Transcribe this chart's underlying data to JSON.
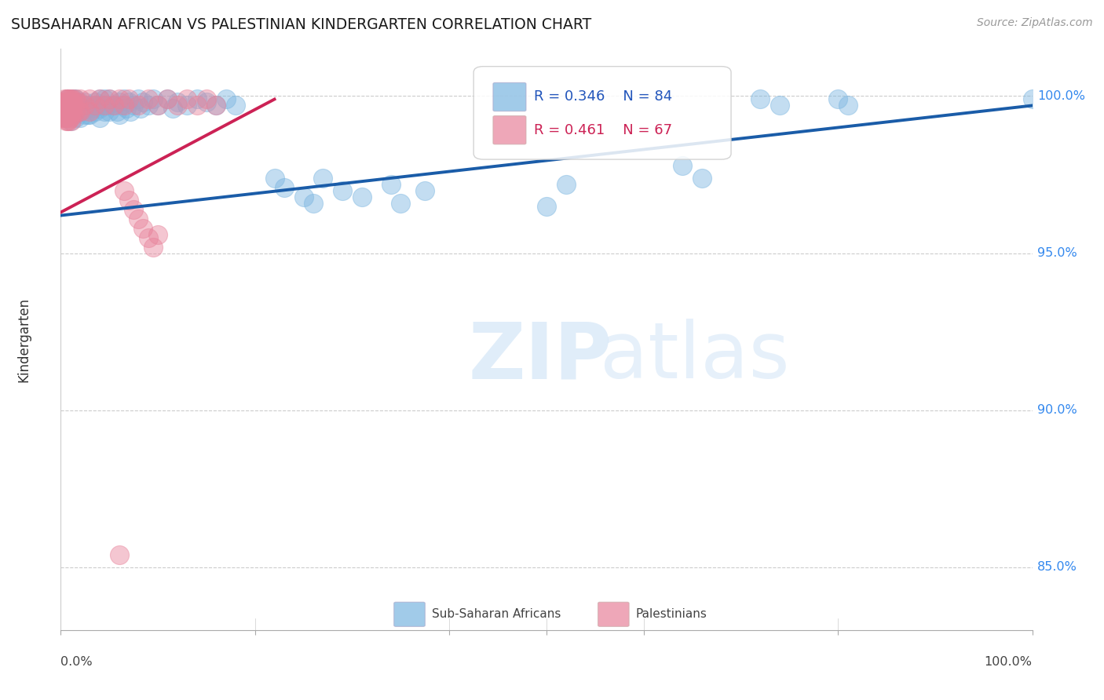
{
  "title": "SUBSAHARAN AFRICAN VS PALESTINIAN KINDERGARTEN CORRELATION CHART",
  "source": "Source: ZipAtlas.com",
  "ylabel": "Kindergarten",
  "ytick_labels": [
    "100.0%",
    "95.0%",
    "90.0%",
    "85.0%"
  ],
  "ytick_values": [
    1.0,
    0.95,
    0.9,
    0.85
  ],
  "xlim": [
    0.0,
    1.0
  ],
  "ylim": [
    0.83,
    1.015
  ],
  "legend_blue_r": "R = 0.346",
  "legend_blue_n": "N = 84",
  "legend_pink_r": "R = 0.461",
  "legend_pink_n": "N = 67",
  "legend_label_blue": "Sub-Saharan Africans",
  "legend_label_pink": "Palestinians",
  "blue_color": "#7ab5e0",
  "pink_color": "#e8829a",
  "blue_line_color": "#1a5ca8",
  "pink_line_color": "#cc2255",
  "blue_points": [
    [
      0.005,
      0.997
    ],
    [
      0.005,
      0.993
    ],
    [
      0.007,
      0.999
    ],
    [
      0.008,
      0.996
    ],
    [
      0.009,
      0.994
    ],
    [
      0.01,
      0.998
    ],
    [
      0.01,
      0.995
    ],
    [
      0.01,
      0.992
    ],
    [
      0.012,
      0.997
    ],
    [
      0.012,
      0.994
    ],
    [
      0.013,
      0.999
    ],
    [
      0.013,
      0.995
    ],
    [
      0.014,
      0.997
    ],
    [
      0.015,
      0.999
    ],
    [
      0.015,
      0.996
    ],
    [
      0.015,
      0.993
    ],
    [
      0.017,
      0.997
    ],
    [
      0.018,
      0.995
    ],
    [
      0.019,
      0.998
    ],
    [
      0.02,
      0.996
    ],
    [
      0.02,
      0.993
    ],
    [
      0.022,
      0.997
    ],
    [
      0.023,
      0.995
    ],
    [
      0.025,
      0.998
    ],
    [
      0.025,
      0.994
    ],
    [
      0.027,
      0.996
    ],
    [
      0.028,
      0.994
    ],
    [
      0.03,
      0.997
    ],
    [
      0.03,
      0.994
    ],
    [
      0.033,
      0.996
    ],
    [
      0.035,
      0.998
    ],
    [
      0.035,
      0.995
    ],
    [
      0.037,
      0.997
    ],
    [
      0.04,
      0.999
    ],
    [
      0.04,
      0.996
    ],
    [
      0.04,
      0.993
    ],
    [
      0.042,
      0.997
    ],
    [
      0.045,
      0.999
    ],
    [
      0.045,
      0.995
    ],
    [
      0.048,
      0.997
    ],
    [
      0.05,
      0.999
    ],
    [
      0.05,
      0.995
    ],
    [
      0.055,
      0.997
    ],
    [
      0.058,
      0.995
    ],
    [
      0.06,
      0.998
    ],
    [
      0.06,
      0.994
    ],
    [
      0.062,
      0.997
    ],
    [
      0.065,
      0.999
    ],
    [
      0.068,
      0.996
    ],
    [
      0.07,
      0.998
    ],
    [
      0.072,
      0.995
    ],
    [
      0.075,
      0.997
    ],
    [
      0.08,
      0.999
    ],
    [
      0.082,
      0.996
    ],
    [
      0.085,
      0.998
    ],
    [
      0.09,
      0.997
    ],
    [
      0.095,
      0.999
    ],
    [
      0.1,
      0.997
    ],
    [
      0.11,
      0.999
    ],
    [
      0.115,
      0.996
    ],
    [
      0.12,
      0.998
    ],
    [
      0.13,
      0.997
    ],
    [
      0.14,
      0.999
    ],
    [
      0.15,
      0.998
    ],
    [
      0.16,
      0.997
    ],
    [
      0.17,
      0.999
    ],
    [
      0.18,
      0.997
    ],
    [
      0.22,
      0.974
    ],
    [
      0.23,
      0.971
    ],
    [
      0.25,
      0.968
    ],
    [
      0.26,
      0.966
    ],
    [
      0.27,
      0.974
    ],
    [
      0.29,
      0.97
    ],
    [
      0.31,
      0.968
    ],
    [
      0.34,
      0.972
    ],
    [
      0.35,
      0.966
    ],
    [
      0.375,
      0.97
    ],
    [
      0.5,
      0.965
    ],
    [
      0.52,
      0.972
    ],
    [
      0.64,
      0.978
    ],
    [
      0.66,
      0.974
    ],
    [
      0.72,
      0.999
    ],
    [
      0.74,
      0.997
    ],
    [
      0.8,
      0.999
    ],
    [
      0.81,
      0.997
    ],
    [
      1.0,
      0.999
    ]
  ],
  "pink_points": [
    [
      0.002,
      0.998
    ],
    [
      0.003,
      0.996
    ],
    [
      0.003,
      0.993
    ],
    [
      0.004,
      0.999
    ],
    [
      0.004,
      0.996
    ],
    [
      0.004,
      0.993
    ],
    [
      0.005,
      0.998
    ],
    [
      0.005,
      0.995
    ],
    [
      0.005,
      0.992
    ],
    [
      0.006,
      0.999
    ],
    [
      0.006,
      0.996
    ],
    [
      0.006,
      0.993
    ],
    [
      0.007,
      0.999
    ],
    [
      0.007,
      0.995
    ],
    [
      0.007,
      0.992
    ],
    [
      0.008,
      0.998
    ],
    [
      0.008,
      0.995
    ],
    [
      0.008,
      0.992
    ],
    [
      0.009,
      0.999
    ],
    [
      0.009,
      0.995
    ],
    [
      0.01,
      0.999
    ],
    [
      0.01,
      0.996
    ],
    [
      0.01,
      0.993
    ],
    [
      0.011,
      0.998
    ],
    [
      0.011,
      0.995
    ],
    [
      0.011,
      0.992
    ],
    [
      0.012,
      0.999
    ],
    [
      0.012,
      0.995
    ],
    [
      0.013,
      0.998
    ],
    [
      0.013,
      0.994
    ],
    [
      0.015,
      0.999
    ],
    [
      0.015,
      0.995
    ],
    [
      0.017,
      0.998
    ],
    [
      0.018,
      0.995
    ],
    [
      0.02,
      0.999
    ],
    [
      0.02,
      0.995
    ],
    [
      0.025,
      0.997
    ],
    [
      0.03,
      0.999
    ],
    [
      0.03,
      0.995
    ],
    [
      0.035,
      0.997
    ],
    [
      0.04,
      0.999
    ],
    [
      0.045,
      0.997
    ],
    [
      0.05,
      0.999
    ],
    [
      0.055,
      0.997
    ],
    [
      0.06,
      0.999
    ],
    [
      0.065,
      0.997
    ],
    [
      0.07,
      0.999
    ],
    [
      0.08,
      0.997
    ],
    [
      0.09,
      0.999
    ],
    [
      0.1,
      0.997
    ],
    [
      0.11,
      0.999
    ],
    [
      0.12,
      0.997
    ],
    [
      0.13,
      0.999
    ],
    [
      0.14,
      0.997
    ],
    [
      0.15,
      0.999
    ],
    [
      0.16,
      0.997
    ],
    [
      0.065,
      0.97
    ],
    [
      0.07,
      0.967
    ],
    [
      0.075,
      0.964
    ],
    [
      0.08,
      0.961
    ],
    [
      0.085,
      0.958
    ],
    [
      0.09,
      0.955
    ],
    [
      0.095,
      0.952
    ],
    [
      0.1,
      0.956
    ],
    [
      0.06,
      0.854
    ]
  ],
  "blue_trendline_x": [
    0.0,
    1.0
  ],
  "blue_trendline_y": [
    0.962,
    0.997
  ],
  "pink_trendline_x": [
    0.0,
    0.22
  ],
  "pink_trendline_y": [
    0.963,
    0.999
  ],
  "watermark_zip": "ZIP",
  "watermark_atlas": "atlas",
  "background_color": "#ffffff",
  "grid_color": "#cccccc",
  "xtick_positions": [
    0.0,
    0.2,
    0.4,
    0.5,
    0.6,
    0.8,
    1.0
  ]
}
